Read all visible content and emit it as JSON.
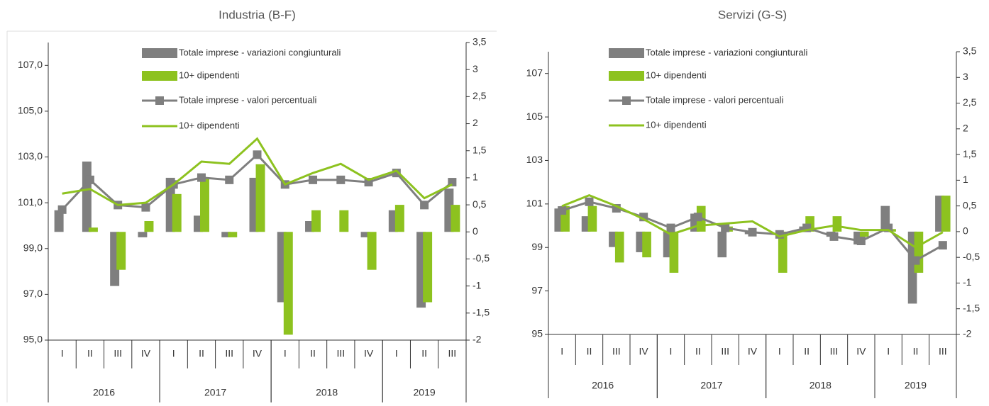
{
  "chart_data": [
    {
      "type": "combo",
      "title": "Industria (B-F)",
      "categories": [
        "I",
        "II",
        "III",
        "IV",
        "I",
        "II",
        "III",
        "IV",
        "I",
        "II",
        "III",
        "IV",
        "I",
        "II",
        "III"
      ],
      "years": [
        "2016",
        "2017",
        "2018",
        "2019"
      ],
      "ylim": [
        95,
        108
      ],
      "yticks": [
        {
          "value": 95,
          "label": "95,0"
        },
        {
          "value": 97,
          "label": "97,0"
        },
        {
          "value": 99,
          "label": "99,0"
        },
        {
          "value": 101,
          "label": "101,0"
        },
        {
          "value": 103,
          "label": "103,0"
        },
        {
          "value": 105,
          "label": "105,0"
        },
        {
          "value": 107,
          "label": "107,0"
        }
      ],
      "y2lim": [
        -2,
        3.5
      ],
      "y2ticks": [
        -2,
        {
          "value": -1.5,
          "label": "-1,5"
        },
        -1,
        {
          "value": -0.5,
          "label": "-0,5"
        },
        0,
        {
          "value": 0.5,
          "label": "0,5"
        },
        1,
        {
          "value": 1.5,
          "label": "1,5"
        },
        2,
        {
          "value": 2.5,
          "label": "2,5"
        },
        3,
        {
          "value": 3.5,
          "label": "3,5"
        }
      ],
      "series": [
        {
          "name": "Totale imprese - variazioni congiunturali",
          "type": "bar",
          "axis": "y2",
          "color": "#7f7f7f",
          "values": [
            0.4,
            1.3,
            -1.0,
            -0.1,
            1.0,
            0.3,
            -0.1,
            1.0,
            -1.3,
            0.2,
            0,
            -0.1,
            0.4,
            -1.4,
            0.8
          ]
        },
        {
          "name": "10+ dipendenti",
          "type": "bar",
          "axis": "y2",
          "color": "#8dc21f",
          "values": [
            0,
            0.08,
            -0.7,
            0.2,
            0.7,
            1.0,
            -0.1,
            1.25,
            -1.9,
            0.4,
            0.4,
            -0.7,
            0.5,
            -1.3,
            0.5
          ]
        },
        {
          "name": "Totale imprese - valori percentuali",
          "type": "line",
          "axis": "y",
          "color": "#7f7f7f",
          "marker": "square",
          "values": [
            100.7,
            102.0,
            100.9,
            100.8,
            101.8,
            102.1,
            102.0,
            103.1,
            101.8,
            102.0,
            102.0,
            101.9,
            102.3,
            100.9,
            101.9
          ]
        },
        {
          "name": "10+ dipendenti",
          "type": "line",
          "axis": "y",
          "color": "#8dc21f",
          "values": [
            101.4,
            101.6,
            100.9,
            101.0,
            101.8,
            102.8,
            102.7,
            103.8,
            101.8,
            102.3,
            102.7,
            102.0,
            102.4,
            101.2,
            101.8
          ]
        }
      ]
    },
    {
      "type": "combo",
      "title": "Servizi (G-S)",
      "categories": [
        "I",
        "II",
        "III",
        "IV",
        "I",
        "II",
        "III",
        "IV",
        "I",
        "II",
        "III",
        "IV",
        "I",
        "II",
        "III"
      ],
      "years": [
        "2016",
        "2017",
        "2018",
        "2019"
      ],
      "ylim": [
        95,
        108
      ],
      "yticks": [
        95,
        97,
        99,
        101,
        103,
        105,
        107
      ],
      "y2lim": [
        -2,
        3.5
      ],
      "y2ticks": [
        -2,
        {
          "value": -1.5,
          "label": "-1,5"
        },
        -1,
        {
          "value": -0.5,
          "label": "-0,5"
        },
        0,
        {
          "value": 0.5,
          "label": "0,5"
        },
        1,
        {
          "value": 1.5,
          "label": "1,5"
        },
        2,
        {
          "value": 2.5,
          "label": "2,5"
        },
        3,
        {
          "value": 3.5,
          "label": "3,5"
        }
      ],
      "series": [
        {
          "name": "Totale imprese - variazioni congiunturali",
          "type": "bar",
          "axis": "y2",
          "color": "#7f7f7f",
          "values": [
            0.45,
            0.3,
            -0.3,
            -0.4,
            -0.5,
            0.35,
            -0.5,
            -0.05,
            0,
            0.1,
            -0.1,
            -0.25,
            0.5,
            -1.4,
            0.7
          ]
        },
        {
          "name": "10+ dipendenti",
          "type": "bar",
          "axis": "y2",
          "color": "#8dc21f",
          "values": [
            0.5,
            0.5,
            -0.6,
            -0.5,
            -0.8,
            0.5,
            0.1,
            0,
            -0.8,
            0.3,
            0.3,
            -0.1,
            0.05,
            -0.8,
            0.7
          ]
        },
        {
          "name": "Totale imprese - valori percentuali",
          "type": "line",
          "axis": "y",
          "color": "#7f7f7f",
          "marker": "square",
          "values": [
            100.7,
            101.1,
            100.8,
            100.4,
            99.9,
            100.4,
            99.9,
            99.7,
            99.6,
            99.9,
            99.5,
            99.3,
            99.9,
            98.4,
            99.1
          ]
        },
        {
          "name": "10+ dipendenti",
          "type": "line",
          "axis": "y",
          "color": "#8dc21f",
          "values": [
            100.9,
            101.4,
            100.9,
            100.3,
            99.6,
            100.0,
            100.1,
            100.2,
            99.5,
            99.8,
            100.0,
            99.8,
            99.8,
            99.0,
            99.7
          ]
        }
      ]
    }
  ]
}
